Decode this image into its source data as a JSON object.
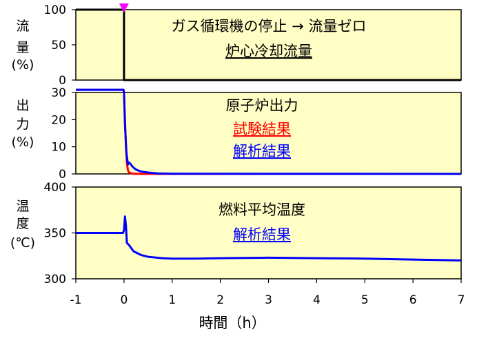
{
  "chart_data": [
    {
      "type": "line",
      "ylabel": "流量\n(%)",
      "ylim": [
        0,
        100
      ],
      "yticks": [
        0,
        50,
        100
      ],
      "xlim": [
        -1,
        7
      ],
      "background": "#fffec4",
      "annotations": [
        {
          "text": "ガス循環機の停止 → 流量ゼロ",
          "color": "#000000",
          "underline": false
        },
        {
          "text": "炉心冷却流量",
          "color": "#000000",
          "underline": true
        }
      ],
      "marker": {
        "x": 0,
        "shape": "down-triangle",
        "color": "#ff00ff"
      },
      "series": [
        {
          "color": "#000000",
          "x": [
            -1,
            -0.001,
            0,
            0.001,
            7
          ],
          "y": [
            100,
            100,
            100,
            0,
            0
          ]
        }
      ]
    },
    {
      "type": "line",
      "ylabel": "出力\n(%)",
      "ylim": [
        0,
        30
      ],
      "yticks": [
        0,
        10,
        20,
        30
      ],
      "xlim": [
        -1,
        7
      ],
      "background": "#fffec4",
      "annotations": [
        {
          "text": "原子炉出力",
          "color": "#000000",
          "underline": false
        },
        {
          "text": "試験結果",
          "color": "#ff0000",
          "underline": true
        },
        {
          "text": "解析結果",
          "color": "#0000ff",
          "underline": true
        }
      ],
      "series": [
        {
          "name": "試験結果",
          "color": "#ff0000",
          "x": [
            -1,
            -0.01,
            0.0,
            0.02,
            0.04,
            0.06,
            0.08,
            0.1,
            0.15,
            0.2,
            0.3,
            0.5,
            7
          ],
          "y": [
            31,
            31,
            30,
            20,
            10,
            4,
            1.5,
            0.6,
            0.2,
            0.05,
            0,
            0,
            0
          ]
        },
        {
          "name": "解析結果",
          "color": "#0000ff",
          "x": [
            -1,
            -0.01,
            0.0,
            0.02,
            0.05,
            0.08,
            0.1,
            0.13,
            0.18,
            0.25,
            0.35,
            0.5,
            0.7,
            1.0,
            7
          ],
          "y": [
            31,
            31,
            30,
            18,
            8,
            3.5,
            4.2,
            3.8,
            2.6,
            1.6,
            0.9,
            0.5,
            0.2,
            0.05,
            0
          ]
        }
      ]
    },
    {
      "type": "line",
      "ylabel": "温度\n(℃)",
      "ylim": [
        300,
        400
      ],
      "yticks": [
        300,
        350,
        400
      ],
      "xlim": [
        -1,
        7
      ],
      "background": "#fffec4",
      "annotations": [
        {
          "text": "燃料平均温度",
          "color": "#000000",
          "underline": false
        },
        {
          "text": "解析結果",
          "color": "#0000ff",
          "underline": true
        }
      ],
      "series": [
        {
          "name": "解析結果",
          "color": "#0000ff",
          "x": [
            -1,
            -0.02,
            0.0,
            0.02,
            0.04,
            0.06,
            0.1,
            0.2,
            0.35,
            0.5,
            0.8,
            1.0,
            1.5,
            2,
            3,
            4,
            5,
            6,
            7
          ],
          "y": [
            350,
            350,
            353,
            368,
            358,
            339,
            337,
            330,
            326,
            324,
            322.5,
            322,
            322,
            322.5,
            323,
            322.5,
            322,
            321,
            320
          ]
        }
      ]
    }
  ],
  "x_axis": {
    "xlim": [
      -1,
      7
    ],
    "ticks": [
      -1,
      0,
      1,
      2,
      3,
      4,
      5,
      6,
      7
    ],
    "label": "時間（h）"
  }
}
